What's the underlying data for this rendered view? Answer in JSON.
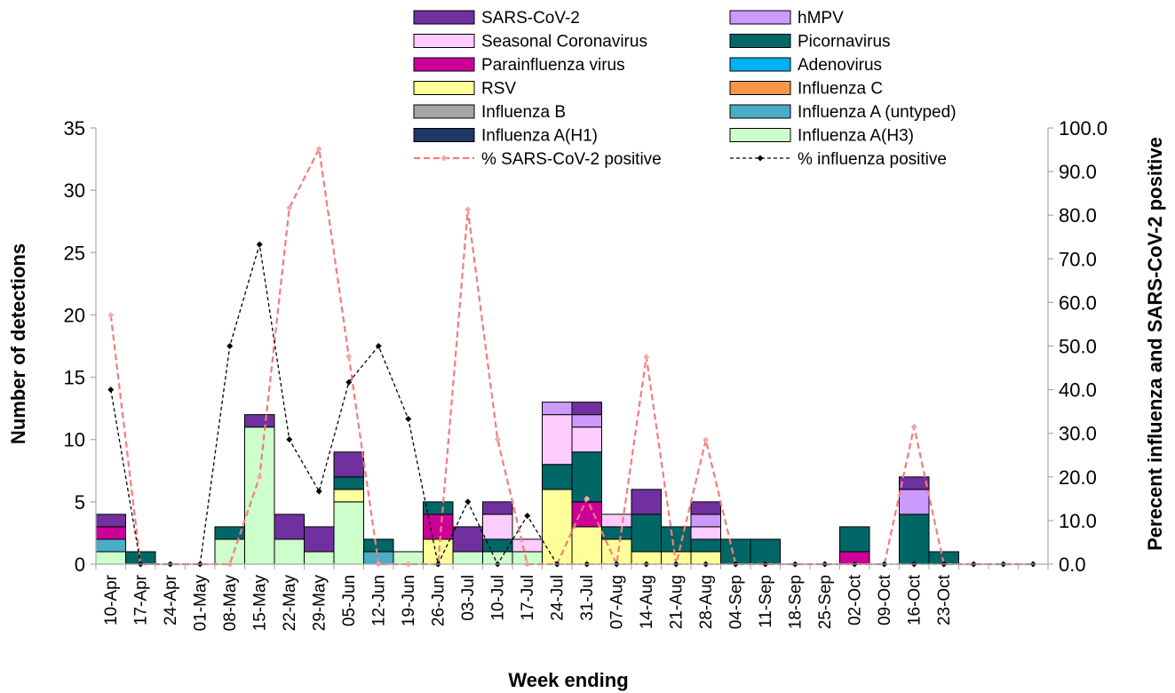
{
  "chart_data": {
    "type": "bar",
    "stacked": true,
    "title": "",
    "xlabel": "Week ending",
    "ylabel": "Number of detections",
    "y2label": "Perecent influenza and SARS-CoV-2 positive",
    "ylim": [
      0,
      35
    ],
    "y_ticks": [
      "0",
      "5",
      "10",
      "15",
      "20",
      "25",
      "30",
      "35"
    ],
    "y2lim": [
      0,
      100
    ],
    "y2_ticks": [
      "0.0",
      "10.0",
      "20.0",
      "30.0",
      "40.0",
      "50.0",
      "60.0",
      "70.0",
      "80.0",
      "90.0",
      "100.0"
    ],
    "grid": false,
    "legend_position": "top",
    "categories": [
      "10-Apr",
      "17-Apr",
      "24-Apr",
      "01-May",
      "08-May",
      "15-May",
      "22-May",
      "29-May",
      "05-Jun",
      "12-Jun",
      "19-Jun",
      "26-Jun",
      "03-Jul",
      "10-Jul",
      "17-Jul",
      "24-Jul",
      "31-Jul",
      "07-Aug",
      "14-Aug",
      "21-Aug",
      "28-Aug",
      "04-Sep",
      "11-Sep",
      "18-Sep",
      "25-Sep",
      "02-Oct",
      "09-Oct",
      "16-Oct",
      "23-Oct",
      "",
      "",
      ""
    ],
    "series": [
      {
        "name": "Influenza A(H3)",
        "color": "#CCFFCC",
        "values": [
          1,
          0,
          0,
          0,
          2,
          11,
          2,
          1,
          5,
          0,
          1,
          0,
          1,
          1,
          1,
          0,
          0,
          0,
          0,
          0,
          0,
          0,
          0,
          0,
          0,
          0,
          0,
          0,
          0,
          0,
          0,
          0
        ]
      },
      {
        "name": "Influenza A(H1)",
        "color": "#1F3864",
        "values": [
          0,
          0,
          0,
          0,
          0,
          0,
          0,
          0,
          0,
          0,
          0,
          0,
          0,
          0,
          0,
          0,
          0,
          0,
          0,
          0,
          0,
          0,
          0,
          0,
          0,
          0,
          0,
          0,
          0,
          0,
          0,
          0
        ]
      },
      {
        "name": "Influenza A (untyped)",
        "color": "#4BACC6",
        "values": [
          1,
          0,
          0,
          0,
          0,
          0,
          0,
          0,
          0,
          1,
          0,
          0,
          0,
          0,
          0,
          0,
          0,
          0,
          0,
          0,
          0,
          0,
          0,
          0,
          0,
          0,
          0,
          0,
          0,
          0,
          0,
          0
        ]
      },
      {
        "name": "Influenza B",
        "color": "#A6A6A6",
        "values": [
          0,
          0,
          0,
          0,
          0,
          0,
          0,
          0,
          0,
          0,
          0,
          0,
          0,
          0,
          0,
          0,
          0,
          0,
          0,
          0,
          0,
          0,
          0,
          0,
          0,
          0,
          0,
          0,
          0,
          0,
          0,
          0
        ]
      },
      {
        "name": "Influenza C",
        "color": "#F79646",
        "values": [
          0,
          0,
          0,
          0,
          0,
          0,
          0,
          0,
          0,
          0,
          0,
          0,
          0,
          0,
          0,
          0,
          0,
          0,
          0,
          0,
          0,
          0,
          0,
          0,
          0,
          0,
          0,
          0,
          0,
          0,
          0,
          0
        ]
      },
      {
        "name": "RSV",
        "color": "#FFFF99",
        "values": [
          0,
          0,
          0,
          0,
          0,
          0,
          0,
          0,
          1,
          0,
          0,
          2,
          0,
          0,
          0,
          6,
          3,
          2,
          1,
          1,
          1,
          0,
          0,
          0,
          0,
          0,
          0,
          0,
          0,
          0,
          0,
          0
        ]
      },
      {
        "name": "Adenovirus",
        "color": "#00B0F0",
        "values": [
          0,
          0,
          0,
          0,
          0,
          0,
          0,
          0,
          0,
          0,
          0,
          0,
          0,
          0,
          0,
          0,
          0,
          0,
          0,
          0,
          0,
          0,
          0,
          0,
          0,
          0,
          0,
          0,
          0,
          0,
          0,
          0
        ]
      },
      {
        "name": "Parainfluenza virus",
        "color": "#CC0099",
        "values": [
          1,
          0,
          0,
          0,
          0,
          0,
          0,
          0,
          0,
          0,
          0,
          2,
          0,
          0,
          0,
          0,
          2,
          0,
          0,
          0,
          0,
          0,
          0,
          0,
          0,
          1,
          0,
          0,
          0,
          0,
          0,
          0
        ]
      },
      {
        "name": "Picornavirus",
        "color": "#006666",
        "values": [
          0,
          1,
          0,
          0,
          1,
          0,
          0,
          0,
          1,
          1,
          0,
          1,
          0,
          1,
          0,
          2,
          4,
          1,
          3,
          2,
          1,
          2,
          2,
          0,
          0,
          2,
          0,
          4,
          1,
          0,
          0,
          0
        ]
      },
      {
        "name": "Seasonal Coronavirus",
        "color": "#FFCCFF",
        "values": [
          0,
          0,
          0,
          0,
          0,
          0,
          0,
          0,
          0,
          0,
          0,
          0,
          0,
          2,
          1,
          4,
          2,
          1,
          0,
          0,
          1,
          0,
          0,
          0,
          0,
          0,
          0,
          0,
          0,
          0,
          0,
          0
        ]
      },
      {
        "name": "hMPV",
        "color": "#CC99FF",
        "values": [
          0,
          0,
          0,
          0,
          0,
          0,
          0,
          0,
          0,
          0,
          0,
          0,
          0,
          0,
          0,
          1,
          1,
          0,
          0,
          0,
          1,
          0,
          0,
          0,
          0,
          0,
          0,
          2,
          0,
          0,
          0,
          0
        ]
      },
      {
        "name": "SARS-CoV-2",
        "color": "#7030A0",
        "values": [
          1,
          0,
          0,
          0,
          0,
          1,
          2,
          2,
          2,
          0,
          0,
          0,
          2,
          1,
          0,
          0,
          1,
          0,
          2,
          0,
          1,
          0,
          0,
          0,
          0,
          0,
          0,
          1,
          0,
          0,
          0,
          0
        ]
      }
    ],
    "lines": [
      {
        "name": "% SARS-CoV-2 positive",
        "color": "#F47C7C",
        "dash": true,
        "marker": "diamond",
        "axis": "right",
        "values": [
          57.1,
          0,
          0,
          0,
          0,
          20,
          81.7,
          95.2,
          47.6,
          0,
          0,
          0,
          81.3,
          28.6,
          0,
          0,
          15,
          0,
          47.5,
          0,
          28.5,
          0,
          0,
          0,
          0,
          0,
          0,
          31.5,
          0,
          0,
          0,
          0
        ]
      },
      {
        "name": "% influenza positive",
        "color": "#000000",
        "dash": true,
        "marker": "diamond",
        "axis": "right",
        "values": [
          40,
          0,
          0,
          0,
          50,
          73.3,
          28.6,
          16.7,
          41.7,
          50,
          33.3,
          0,
          14.3,
          0,
          11.1,
          0,
          0,
          0,
          0,
          0,
          0,
          0,
          0,
          0,
          0,
          0,
          0,
          0,
          0,
          0,
          0,
          0
        ]
      }
    ]
  }
}
